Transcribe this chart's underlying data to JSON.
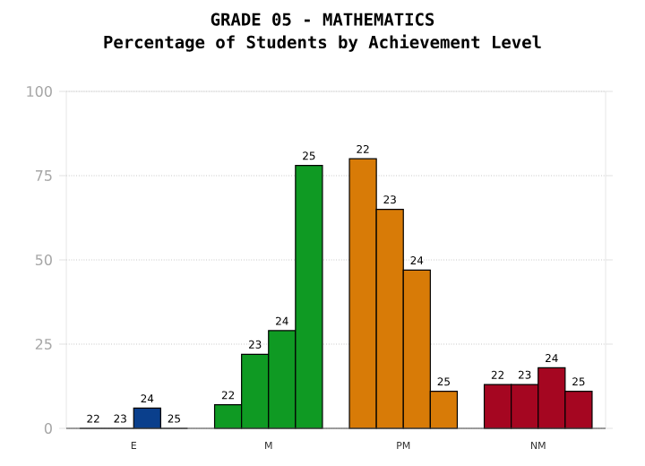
{
  "chart_data": {
    "type": "bar",
    "title": "GRADE 05 - MATHEMATICS",
    "subtitle": "Percentage of Students by Achievement Level",
    "categories": [
      "E",
      "M",
      "PM",
      "NM"
    ],
    "series": [
      {
        "name": "22",
        "colors": [
          "#0a3f8c",
          "#0f9a23",
          "#d87b07",
          "#a50621"
        ],
        "values": [
          0,
          7,
          80,
          13
        ]
      },
      {
        "name": "23",
        "colors": [
          "#0a3f8c",
          "#0f9a23",
          "#d87b07",
          "#a50621"
        ],
        "values": [
          0,
          22,
          65,
          13
        ]
      },
      {
        "name": "24",
        "colors": [
          "#0a3f8c",
          "#0f9a23",
          "#d87b07",
          "#a50621"
        ],
        "values": [
          6,
          29,
          47,
          18
        ]
      },
      {
        "name": "25",
        "colors": [
          "#0a3f8c",
          "#0f9a23",
          "#d87b07",
          "#a50621"
        ],
        "values": [
          0,
          78,
          11,
          11
        ]
      }
    ],
    "ylim": [
      0,
      100
    ],
    "yticks": [
      0,
      25,
      50,
      75,
      100
    ],
    "grid": "y"
  }
}
